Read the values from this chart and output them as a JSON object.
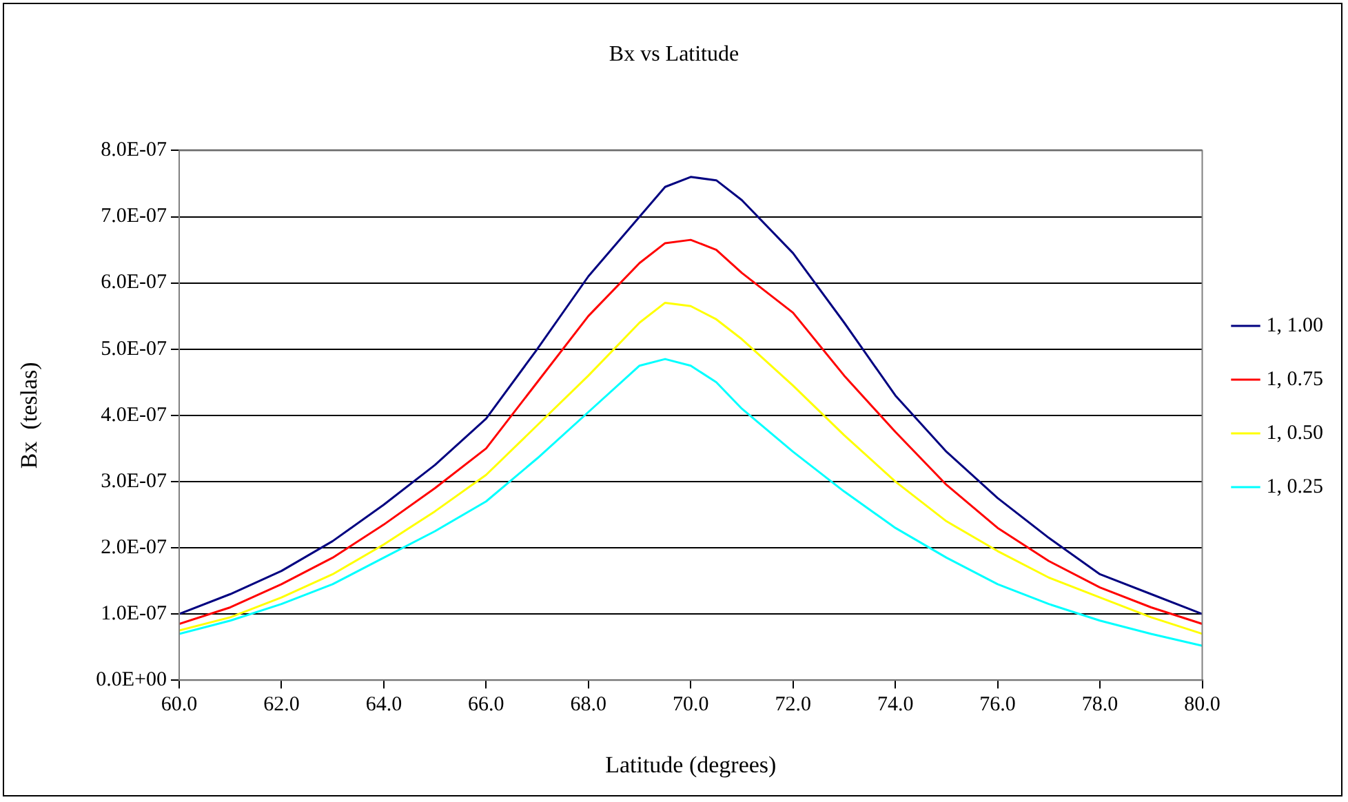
{
  "chart_data": {
    "type": "line",
    "title": "Bx vs Latitude",
    "xlabel": "Latitude (degrees)",
    "ylabel": "Bx  (teslas)",
    "x": [
      60,
      61,
      62,
      63,
      64,
      65,
      66,
      67,
      68,
      69,
      69.5,
      70,
      70.5,
      71,
      72,
      73,
      74,
      75,
      76,
      77,
      78,
      79,
      80
    ],
    "series": [
      {
        "name": "1, 1.00",
        "color": "#000080",
        "values": [
          1e-07,
          1.3e-07,
          1.65e-07,
          2.1e-07,
          2.65e-07,
          3.25e-07,
          3.95e-07,
          5e-07,
          6.1e-07,
          7e-07,
          7.45e-07,
          7.6e-07,
          7.55e-07,
          7.25e-07,
          6.45e-07,
          5.4e-07,
          4.3e-07,
          3.45e-07,
          2.75e-07,
          2.15e-07,
          1.6e-07,
          1.3e-07,
          1e-07
        ]
      },
      {
        "name": "1, 0.75",
        "color": "#ff0000",
        "values": [
          8.5e-08,
          1.1e-07,
          1.45e-07,
          1.85e-07,
          2.35e-07,
          2.9e-07,
          3.5e-07,
          4.5e-07,
          5.5e-07,
          6.3e-07,
          6.6e-07,
          6.65e-07,
          6.5e-07,
          6.15e-07,
          5.55e-07,
          4.6e-07,
          3.75e-07,
          2.95e-07,
          2.3e-07,
          1.8e-07,
          1.4e-07,
          1.1e-07,
          8.5e-08
        ]
      },
      {
        "name": "1, 0.50",
        "color": "#ffff00",
        "values": [
          7.5e-08,
          9.5e-08,
          1.25e-07,
          1.6e-07,
          2.05e-07,
          2.55e-07,
          3.1e-07,
          3.85e-07,
          4.6e-07,
          5.4e-07,
          5.7e-07,
          5.65e-07,
          5.45e-07,
          5.15e-07,
          4.45e-07,
          3.7e-07,
          3e-07,
          2.4e-07,
          1.95e-07,
          1.55e-07,
          1.25e-07,
          9.5e-08,
          7e-08
        ]
      },
      {
        "name": "1, 0.25",
        "color": "#00ffff",
        "values": [
          7e-08,
          9e-08,
          1.15e-07,
          1.45e-07,
          1.85e-07,
          2.25e-07,
          2.7e-07,
          3.35e-07,
          4.05e-07,
          4.75e-07,
          4.85e-07,
          4.75e-07,
          4.5e-07,
          4.1e-07,
          3.45e-07,
          2.85e-07,
          2.3e-07,
          1.85e-07,
          1.45e-07,
          1.15e-07,
          9e-08,
          7e-08,
          5.2e-08
        ]
      }
    ],
    "xlim": [
      60,
      80
    ],
    "xticks": [
      {
        "value": 60,
        "label": "60.0"
      },
      {
        "value": 62,
        "label": "62.0"
      },
      {
        "value": 64,
        "label": "64.0"
      },
      {
        "value": 66,
        "label": "66.0"
      },
      {
        "value": 68,
        "label": "68.0"
      },
      {
        "value": 70,
        "label": "70.0"
      },
      {
        "value": 72,
        "label": "72.0"
      },
      {
        "value": 74,
        "label": "74.0"
      },
      {
        "value": 76,
        "label": "76.0"
      },
      {
        "value": 78,
        "label": "78.0"
      },
      {
        "value": 80,
        "label": "80.0"
      }
    ],
    "ylim": [
      0,
      8e-07
    ],
    "yticks": [
      {
        "value": 0,
        "label": "0.0E+00"
      },
      {
        "value": 1e-07,
        "label": "1.0E-07"
      },
      {
        "value": 2e-07,
        "label": "2.0E-07"
      },
      {
        "value": 3e-07,
        "label": "3.0E-07"
      },
      {
        "value": 4e-07,
        "label": "4.0E-07"
      },
      {
        "value": 5e-07,
        "label": "5.0E-07"
      },
      {
        "value": 6e-07,
        "label": "6.0E-07"
      },
      {
        "value": 7e-07,
        "label": "7.0E-07"
      },
      {
        "value": 8e-07,
        "label": "8.0E-07"
      }
    ],
    "grid": "y",
    "legend": "right",
    "marker": "none",
    "line_style": "solid"
  }
}
